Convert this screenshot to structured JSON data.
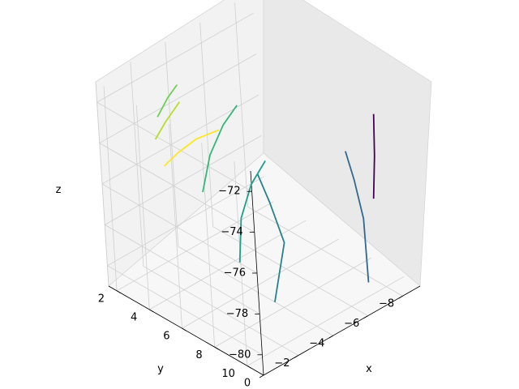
{
  "chart_data": {
    "type": "line3d",
    "title": "",
    "xlabel": "x",
    "ylabel": "y",
    "zlabel": "z",
    "xlim": [
      0,
      -9
    ],
    "ylim": [
      1.5,
      11
    ],
    "zlim": [
      -81,
      -71
    ],
    "x_ticks": [
      {
        "value": 0,
        "label": "0"
      },
      {
        "value": -2,
        "label": "−2"
      },
      {
        "value": -4,
        "label": "−4"
      },
      {
        "value": -6,
        "label": "−6"
      },
      {
        "value": -8,
        "label": "−8"
      }
    ],
    "y_ticks": [
      {
        "value": 2,
        "label": "2"
      },
      {
        "value": 4,
        "label": "4"
      },
      {
        "value": 6,
        "label": "6"
      },
      {
        "value": 8,
        "label": "8"
      },
      {
        "value": 10,
        "label": "10"
      }
    ],
    "z_ticks": [
      {
        "value": -72,
        "label": "−72"
      },
      {
        "value": -74,
        "label": "−74"
      },
      {
        "value": -76,
        "label": "−76"
      },
      {
        "value": -78,
        "label": "−78"
      },
      {
        "value": -80,
        "label": "−80"
      }
    ],
    "grid": true,
    "colormap": "viridis",
    "series": [
      {
        "color": "#440154",
        "points": [
          [
            -7.6,
            10,
            -76.5
          ],
          [
            -7.8,
            10,
            -74.5
          ],
          [
            -7.9,
            10,
            -72.5
          ]
        ]
      },
      {
        "color": "#31688e",
        "points": [
          [
            -7.2,
            9.8,
            -80.5
          ],
          [
            -6.8,
            10.2,
            -77
          ],
          [
            -6.5,
            10.1,
            -75
          ],
          [
            -6.2,
            10,
            -73.5
          ]
        ]
      },
      {
        "color": "#26828e",
        "points": [
          [
            -3.5,
            8,
            -80.5
          ],
          [
            -3.8,
            8.5,
            -77.5
          ],
          [
            -3.4,
            8.2,
            -75.5
          ],
          [
            -3,
            8,
            -74
          ]
        ]
      },
      {
        "color": "#1f9e89",
        "points": [
          [
            -3,
            6.5,
            -79
          ],
          [
            -2.8,
            7,
            -76.5
          ],
          [
            -3.3,
            7.2,
            -75
          ],
          [
            -3.9,
            7.5,
            -74
          ]
        ]
      },
      {
        "color": "#35b779",
        "points": [
          [
            -2.5,
            5,
            -76
          ],
          [
            -2.6,
            5.5,
            -74
          ],
          [
            -3,
            6,
            -72.5
          ],
          [
            -3.4,
            6.5,
            -71.5
          ]
        ]
      },
      {
        "color": "#6ece58",
        "points": [
          [
            -2,
            3,
            -73
          ],
          [
            -2.3,
            3.4,
            -72
          ],
          [
            -2.5,
            3.8,
            -71.3
          ]
        ]
      },
      {
        "color": "#b5de2b",
        "points": [
          [
            -1.8,
            3,
            -74
          ],
          [
            -2,
            3.5,
            -73
          ],
          [
            -2.4,
            4,
            -72
          ]
        ]
      },
      {
        "color": "#fde725",
        "points": [
          [
            -2.2,
            3,
            -75.5
          ],
          [
            -2.6,
            3.5,
            -74.8
          ],
          [
            -3.2,
            4,
            -74.2
          ],
          [
            -3.6,
            5,
            -73.5
          ]
        ]
      }
    ]
  }
}
